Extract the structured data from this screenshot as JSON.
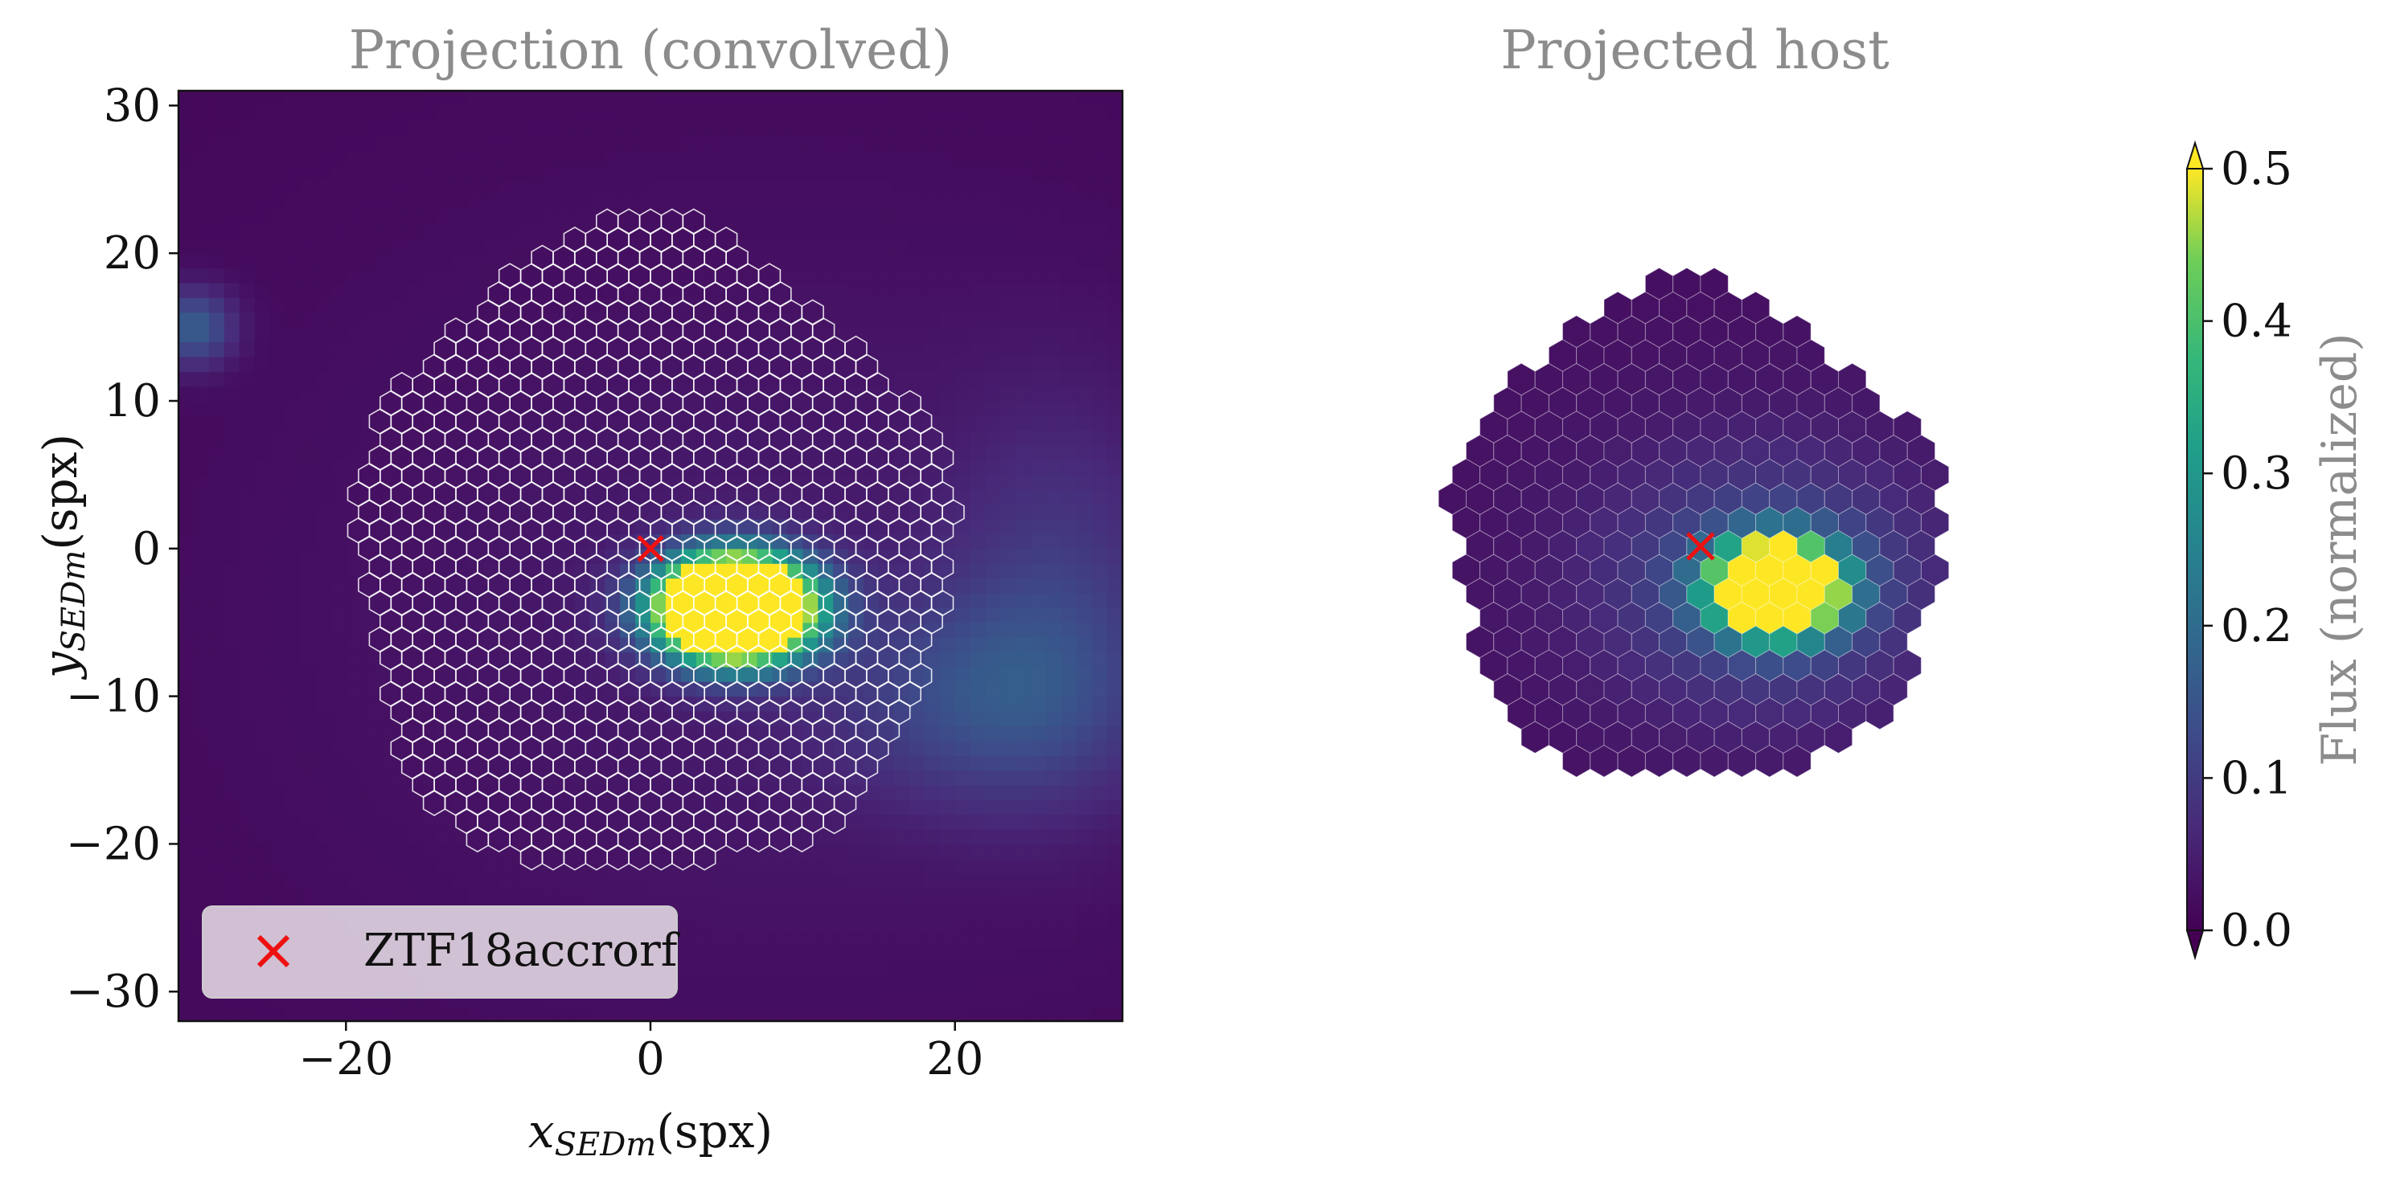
{
  "chart_data": [
    {
      "type": "heatmap",
      "title": "Projection (convolved)",
      "xlabel": "x_{SEDm}(spx)",
      "ylabel": "y_{SEDm}(spx)",
      "xlim": [
        -31,
        31
      ],
      "ylim": [
        -32,
        31
      ],
      "xticks": [
        -20,
        0,
        20
      ],
      "xtick_labels": [
        "−20",
        "0",
        "20"
      ],
      "yticks": [
        30,
        20,
        10,
        0,
        -10,
        -20,
        -30
      ],
      "ytick_labels": [
        "30",
        "20",
        "10",
        "0",
        "−10",
        "−20",
        "−30"
      ],
      "colormap": "viridis",
      "clim": [
        0.0,
        0.5
      ],
      "image_peaks": [
        {
          "x": 5.5,
          "y": -4.0,
          "sx": 3.3,
          "sy": 2.3,
          "amp": 1.3
        },
        {
          "x": 22,
          "y": -10,
          "sx": 7,
          "sy": 5,
          "amp": 0.1
        },
        {
          "x": 27,
          "y": -3,
          "sx": 5,
          "sy": 9,
          "amp": 0.06
        },
        {
          "x": -30,
          "y": 15,
          "sx": 1.8,
          "sy": 1.8,
          "amp": 0.15
        },
        {
          "x": 8,
          "y": -4,
          "sx": 22,
          "sy": 18,
          "amp": 0.03
        }
      ],
      "hex_grid_outline": "white",
      "target": {
        "name": "ZTF18accrorf",
        "x": 0,
        "y": 0,
        "marker": "x",
        "color": "#ee1111"
      },
      "legend": {
        "location": "lower-left",
        "entries": [
          "ZTF18accrorf"
        ]
      }
    },
    {
      "type": "heatmap",
      "title": "Projected host",
      "colormap": "viridis",
      "clim": [
        0.0,
        0.5
      ],
      "axes": "off",
      "target": {
        "name": "ZTF18accrorf",
        "x": 0,
        "y": 0,
        "marker": "x",
        "color": "#ee1111"
      }
    }
  ],
  "colorbar": {
    "label": "Flux (normalized)",
    "ticks": [
      0.0,
      0.1,
      0.2,
      0.3,
      0.4,
      0.5
    ],
    "tick_labels": [
      "0.0",
      "0.1",
      "0.2",
      "0.3",
      "0.4",
      "0.5"
    ],
    "extend": "both"
  }
}
